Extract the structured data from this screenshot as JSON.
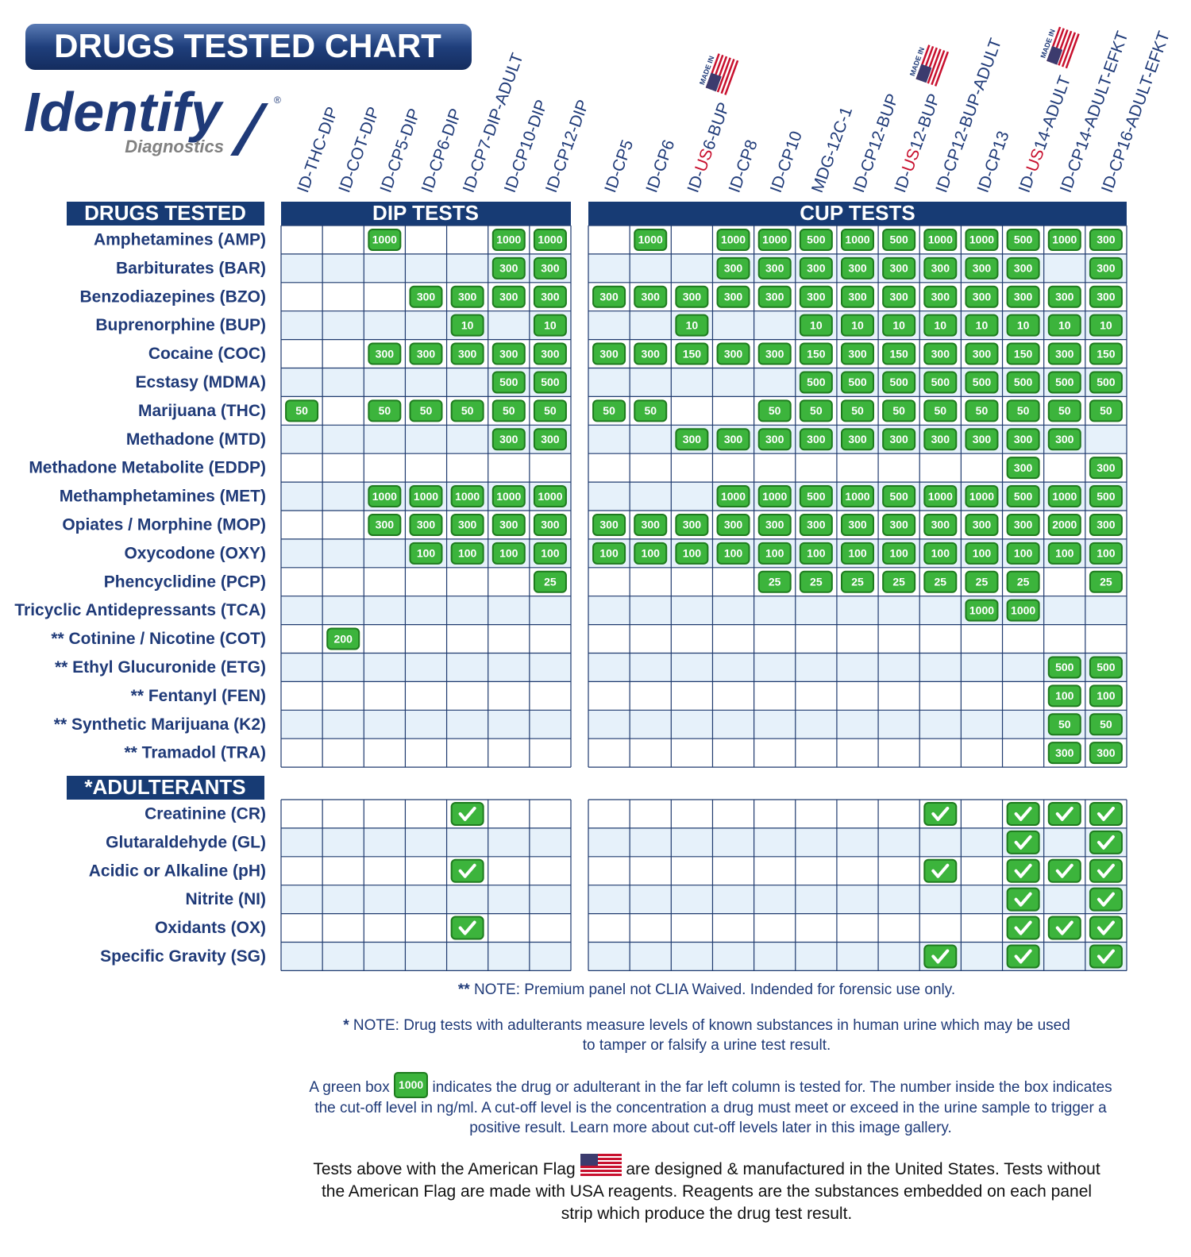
{
  "title": "DRUGS TESTED CHART",
  "logo": {
    "name": "Identify",
    "registered": "®",
    "subtitle": "Diagnostics"
  },
  "flag_text": "MADE IN",
  "headers": {
    "drugs": "DRUGS TESTED",
    "dip": "DIP TESTS",
    "cup": "CUP TESTS",
    "adulterants": "*ADULTERANTS"
  },
  "dip_columns": [
    {
      "parts": [
        "ID-THC-DIP"
      ]
    },
    {
      "parts": [
        "ID-COT-DIP"
      ]
    },
    {
      "parts": [
        "ID-CP5-DIP"
      ]
    },
    {
      "parts": [
        "ID-CP6-DIP"
      ]
    },
    {
      "parts": [
        "ID-CP7-DIP-ADULT"
      ]
    },
    {
      "parts": [
        "ID-CP10-DIP"
      ]
    },
    {
      "parts": [
        "ID-CP12-DIP"
      ]
    }
  ],
  "cup_columns": [
    {
      "parts": [
        "ID-CP5"
      ]
    },
    {
      "parts": [
        "ID-CP6"
      ]
    },
    {
      "parts": [
        "ID-",
        "US",
        "6-BUP"
      ],
      "made_in_usa": true
    },
    {
      "parts": [
        "ID-CP8"
      ]
    },
    {
      "parts": [
        "ID-CP10"
      ]
    },
    {
      "parts": [
        "MDG-12C-1"
      ]
    },
    {
      "parts": [
        "ID-CP12-BUP"
      ]
    },
    {
      "parts": [
        "ID-",
        "US",
        "12-BUP"
      ],
      "made_in_usa": true
    },
    {
      "parts": [
        "ID-CP12-BUP-ADULT"
      ]
    },
    {
      "parts": [
        "ID-CP13"
      ]
    },
    {
      "parts": [
        "ID-",
        "US",
        "14-ADULT"
      ],
      "made_in_usa": true
    },
    {
      "parts": [
        "ID-CP14-ADULT-EFKT"
      ]
    },
    {
      "parts": [
        "ID-CP16-ADULT-EFKT"
      ]
    }
  ],
  "drugs": [
    {
      "name": "Amphetamines (AMP)",
      "dip": [
        null,
        null,
        1000,
        null,
        null,
        1000,
        1000
      ],
      "cup": [
        null,
        1000,
        null,
        1000,
        1000,
        500,
        1000,
        500,
        1000,
        1000,
        500,
        1000,
        300
      ]
    },
    {
      "name": "Barbiturates (BAR)",
      "dip": [
        null,
        null,
        null,
        null,
        null,
        300,
        300
      ],
      "cup": [
        null,
        null,
        null,
        300,
        300,
        300,
        300,
        300,
        300,
        300,
        300,
        null,
        300
      ]
    },
    {
      "name": "Benzodiazepines (BZO)",
      "dip": [
        null,
        null,
        null,
        300,
        300,
        300,
        300
      ],
      "cup": [
        300,
        300,
        300,
        300,
        300,
        300,
        300,
        300,
        300,
        300,
        300,
        300,
        300
      ]
    },
    {
      "name": "Buprenorphine (BUP)",
      "dip": [
        null,
        null,
        null,
        null,
        10,
        null,
        10
      ],
      "cup": [
        null,
        null,
        10,
        null,
        null,
        10,
        10,
        10,
        10,
        10,
        10,
        10,
        10
      ]
    },
    {
      "name": "Cocaine (COC)",
      "dip": [
        null,
        null,
        300,
        300,
        300,
        300,
        300
      ],
      "cup": [
        300,
        300,
        150,
        300,
        300,
        150,
        300,
        150,
        300,
        300,
        150,
        300,
        150
      ]
    },
    {
      "name": "Ecstasy (MDMA)",
      "dip": [
        null,
        null,
        null,
        null,
        null,
        500,
        500
      ],
      "cup": [
        null,
        null,
        null,
        null,
        null,
        500,
        500,
        500,
        500,
        500,
        500,
        500,
        500
      ]
    },
    {
      "name": "Marijuana (THC)",
      "dip": [
        50,
        null,
        50,
        50,
        50,
        50,
        50
      ],
      "cup": [
        50,
        50,
        null,
        null,
        50,
        50,
        50,
        50,
        50,
        50,
        50,
        50,
        50
      ]
    },
    {
      "name": "Methadone (MTD)",
      "dip": [
        null,
        null,
        null,
        null,
        null,
        300,
        300
      ],
      "cup": [
        null,
        null,
        300,
        300,
        300,
        300,
        300,
        300,
        300,
        300,
        300,
        300,
        null
      ]
    },
    {
      "name": "Methadone Metabolite (EDDP)",
      "dip": [
        null,
        null,
        null,
        null,
        null,
        null,
        null
      ],
      "cup": [
        null,
        null,
        null,
        null,
        null,
        null,
        null,
        null,
        null,
        null,
        300,
        null,
        300
      ]
    },
    {
      "name": "Methamphetamines (MET)",
      "dip": [
        null,
        null,
        1000,
        1000,
        1000,
        1000,
        1000
      ],
      "cup": [
        null,
        null,
        null,
        1000,
        1000,
        500,
        1000,
        500,
        1000,
        1000,
        500,
        1000,
        500
      ]
    },
    {
      "name": "Opiates / Morphine (MOP)",
      "dip": [
        null,
        null,
        300,
        300,
        300,
        300,
        300
      ],
      "cup": [
        300,
        300,
        300,
        300,
        300,
        300,
        300,
        300,
        300,
        300,
        300,
        2000,
        300
      ]
    },
    {
      "name": "Oxycodone (OXY)",
      "dip": [
        null,
        null,
        null,
        100,
        100,
        100,
        100
      ],
      "cup": [
        100,
        100,
        100,
        100,
        100,
        100,
        100,
        100,
        100,
        100,
        100,
        100,
        100
      ]
    },
    {
      "name": "Phencyclidine (PCP)",
      "dip": [
        null,
        null,
        null,
        null,
        null,
        null,
        25
      ],
      "cup": [
        null,
        null,
        null,
        null,
        25,
        25,
        25,
        25,
        25,
        25,
        25,
        null,
        25
      ]
    },
    {
      "name": "Tricyclic Antidepressants (TCA)",
      "dip": [
        null,
        null,
        null,
        null,
        null,
        null,
        null
      ],
      "cup": [
        null,
        null,
        null,
        null,
        null,
        null,
        null,
        null,
        null,
        1000,
        1000,
        null,
        null
      ]
    },
    {
      "name": "** Cotinine / Nicotine (COT)",
      "dip": [
        null,
        200,
        null,
        null,
        null,
        null,
        null
      ],
      "cup": [
        null,
        null,
        null,
        null,
        null,
        null,
        null,
        null,
        null,
        null,
        null,
        null,
        null
      ]
    },
    {
      "name": "** Ethyl Glucuronide (ETG)",
      "dip": [
        null,
        null,
        null,
        null,
        null,
        null,
        null
      ],
      "cup": [
        null,
        null,
        null,
        null,
        null,
        null,
        null,
        null,
        null,
        null,
        null,
        500,
        500
      ]
    },
    {
      "name": "** Fentanyl (FEN)",
      "dip": [
        null,
        null,
        null,
        null,
        null,
        null,
        null
      ],
      "cup": [
        null,
        null,
        null,
        null,
        null,
        null,
        null,
        null,
        null,
        null,
        null,
        100,
        100
      ]
    },
    {
      "name": "** Synthetic Marijuana (K2)",
      "dip": [
        null,
        null,
        null,
        null,
        null,
        null,
        null
      ],
      "cup": [
        null,
        null,
        null,
        null,
        null,
        null,
        null,
        null,
        null,
        null,
        null,
        50,
        50
      ]
    },
    {
      "name": "** Tramadol (TRA)",
      "dip": [
        null,
        null,
        null,
        null,
        null,
        null,
        null
      ],
      "cup": [
        null,
        null,
        null,
        null,
        null,
        null,
        null,
        null,
        null,
        null,
        null,
        300,
        300
      ]
    }
  ],
  "adulterants": [
    {
      "name": "Creatinine (CR)",
      "dip": [
        null,
        null,
        null,
        null,
        true,
        null,
        null
      ],
      "cup": [
        null,
        null,
        null,
        null,
        null,
        null,
        null,
        null,
        true,
        null,
        true,
        true,
        true
      ]
    },
    {
      "name": "Glutaraldehyde (GL)",
      "dip": [
        null,
        null,
        null,
        null,
        null,
        null,
        null
      ],
      "cup": [
        null,
        null,
        null,
        null,
        null,
        null,
        null,
        null,
        null,
        null,
        true,
        null,
        true
      ]
    },
    {
      "name": "Acidic or Alkaline (pH)",
      "dip": [
        null,
        null,
        null,
        null,
        true,
        null,
        null
      ],
      "cup": [
        null,
        null,
        null,
        null,
        null,
        null,
        null,
        null,
        true,
        null,
        true,
        true,
        true
      ]
    },
    {
      "name": "Nitrite (NI)",
      "dip": [
        null,
        null,
        null,
        null,
        null,
        null,
        null
      ],
      "cup": [
        null,
        null,
        null,
        null,
        null,
        null,
        null,
        null,
        null,
        null,
        true,
        null,
        true
      ]
    },
    {
      "name": "Oxidants (OX)",
      "dip": [
        null,
        null,
        null,
        null,
        true,
        null,
        null
      ],
      "cup": [
        null,
        null,
        null,
        null,
        null,
        null,
        null,
        null,
        null,
        null,
        true,
        true,
        true
      ]
    },
    {
      "name": "Specific Gravity (SG)",
      "dip": [
        null,
        null,
        null,
        null,
        null,
        null,
        null
      ],
      "cup": [
        null,
        null,
        null,
        null,
        null,
        null,
        null,
        null,
        true,
        null,
        true,
        null,
        true
      ]
    }
  ],
  "notes": {
    "premium": {
      "marker": "**",
      "text": "NOTE: Premium panel not CLIA Waived. Indended for forensic use only."
    },
    "adulterants": {
      "marker": "*",
      "text": "NOTE: Drug tests with adulterants measure levels of known substances in human urine which may be used to tamper or falsify a urine test result."
    },
    "green_box": {
      "before": "A green box",
      "sample": "1000",
      "after": "indicates the drug or adulterant in the far left column is tested for. The number inside the box indicates the cut-off level in ng/ml. A cut-off level is the concentration a drug must meet or exceed in the urine sample to trigger a positive result. Learn more about cut-off levels later in this image gallery."
    },
    "flag": {
      "before": "Tests above with the American Flag",
      "after": "are designed & manufactured in the United States. Tests without the American Flag are made with USA reagents. Reagents are the substances embedded on each panel strip which produce the drug test result."
    }
  }
}
